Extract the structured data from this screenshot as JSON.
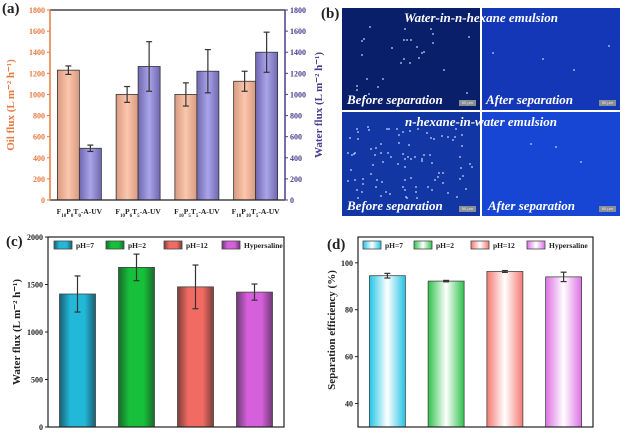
{
  "panel_labels": {
    "a": "(a)",
    "b": "(b)",
    "c": "(c)",
    "d": "(d)"
  },
  "chart_data": [
    {
      "id": "a",
      "type": "bar",
      "title": "",
      "categories": [
        {
          "parts": [
            [
              "F",
              ""
            ],
            [
              "10",
              "sub"
            ],
            [
              "P",
              ""
            ],
            [
              "0",
              "sub"
            ],
            [
              "T",
              ""
            ],
            [
              "0",
              "sub"
            ],
            [
              "-A-UV",
              ""
            ]
          ]
        },
        {
          "parts": [
            [
              "F",
              ""
            ],
            [
              "10",
              "sub"
            ],
            [
              "P",
              ""
            ],
            [
              "6",
              "sub"
            ],
            [
              "T",
              ""
            ],
            [
              "5",
              "sub"
            ],
            [
              "-A-UV",
              ""
            ]
          ]
        },
        {
          "parts": [
            [
              "F",
              ""
            ],
            [
              "10",
              "sub"
            ],
            [
              "P",
              ""
            ],
            [
              "5",
              "sub"
            ],
            [
              "T",
              ""
            ],
            [
              "5",
              "sub"
            ],
            [
              "-A-UV",
              ""
            ]
          ]
        },
        {
          "parts": [
            [
              "F",
              ""
            ],
            [
              "10",
              "sub"
            ],
            [
              "P",
              ""
            ],
            [
              "10",
              "sub"
            ],
            [
              "T",
              ""
            ],
            [
              "5",
              "sub"
            ],
            [
              "-A-UV",
              ""
            ]
          ]
        }
      ],
      "series": [
        {
          "name": "Oil flux",
          "axis": "left",
          "color": "#f4b79a",
          "values": [
            1230,
            1000,
            1000,
            1125
          ],
          "errors": [
            40,
            75,
            110,
            95
          ]
        },
        {
          "name": "Water flux",
          "axis": "right",
          "color": "#9d97dc",
          "values": [
            490,
            1265,
            1220,
            1400
          ],
          "errors": [
            30,
            235,
            205,
            190
          ]
        }
      ],
      "ylabel_left": "Oil flux (L m⁻² h⁻¹)",
      "ylabel_right": "Water flux (L m⁻² h⁻¹)",
      "ylim": [
        0,
        1800
      ],
      "yticks": [
        0,
        200,
        400,
        600,
        800,
        1000,
        1200,
        1400,
        1600,
        1800
      ],
      "left_axis_color": "#e8793f",
      "right_axis_color": "#4b3d8f"
    },
    {
      "id": "c",
      "type": "bar",
      "title": "",
      "categories": [
        "pH=7",
        "pH=2",
        "pH=12",
        "Hypersaline"
      ],
      "values": [
        1400,
        1680,
        1475,
        1420
      ],
      "errors": [
        190,
        140,
        230,
        85
      ],
      "colors": [
        "#22b8d8",
        "#16c03a",
        "#f26b62",
        "#d65fdc"
      ],
      "legend": [
        "pH=7",
        "pH=2",
        "pH=12",
        "Hypersaline"
      ],
      "legend_position": "top",
      "ylabel": "Water flux (L m⁻² h⁻¹)",
      "ylim": [
        0,
        2000
      ],
      "yticks": [
        0,
        500,
        1000,
        1500,
        2000
      ]
    },
    {
      "id": "d",
      "type": "bar",
      "title": "",
      "categories": [
        "pH=7",
        "pH=2",
        "pH=12",
        "Hypersaline"
      ],
      "values": [
        94.5,
        92.2,
        96.3,
        94.0
      ],
      "errors": [
        1.0,
        0.3,
        0.4,
        2.0
      ],
      "colors": [
        "#22c4e6",
        "#2fc24c",
        "#f47a72",
        "#dc70e4"
      ],
      "legend": [
        "pH=7",
        "pH=2",
        "pH=12",
        "Hypersaline"
      ],
      "legend_position": "top",
      "ylabel": "Separation efficiency (%)",
      "ylim": [
        30,
        111
      ],
      "yticks": [
        40,
        60,
        80,
        100
      ]
    }
  ],
  "micrographs": {
    "top_title": "Water-in-n-hexane emulsion",
    "bottom_title": "n-hexane-in-water emulsion",
    "before_label": "Before separation",
    "after_label": "After separation",
    "scale_bar": "50 μm"
  }
}
